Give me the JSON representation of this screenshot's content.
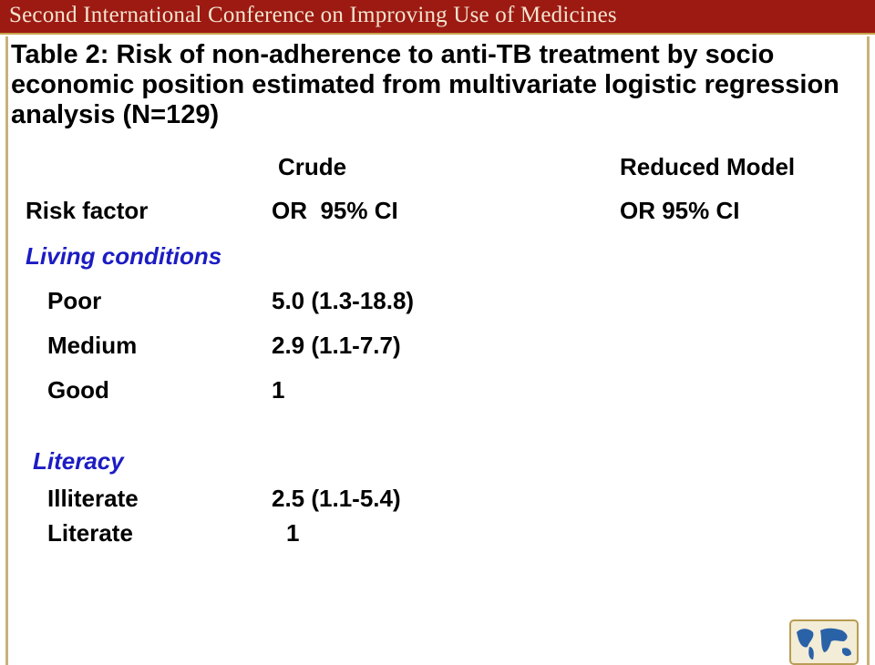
{
  "banner": {
    "title": "Second International Conference on Improving Use of Medicines"
  },
  "heading": "Table 2: Risk of non-adherence to anti-TB treatment by socio economic position estimated from multivariate logistic regression analysis (N=129)",
  "table": {
    "group_headers": {
      "crude": "Crude",
      "reduced": "Reduced Model"
    },
    "column_headers": {
      "risk_factor": "Risk factor",
      "crude_or": "OR  95% CI",
      "reduced_or": "OR 95% CI"
    },
    "sections": [
      {
        "name": "Living conditions",
        "rows": [
          {
            "factor": "Poor",
            "crude": "5.0 (1.3-18.8)"
          },
          {
            "factor": "Medium",
            "crude": "2.9 (1.1-7.7)"
          },
          {
            "factor": "Good",
            "crude": "1"
          }
        ]
      },
      {
        "name": "Literacy",
        "rows": [
          {
            "factor": "Illiterate",
            "crude": "2.5 (1.1-5.4)"
          },
          {
            "factor": "Literate",
            "crude": "1"
          }
        ]
      }
    ]
  },
  "logo": {
    "icon": "world-map-icon"
  },
  "colors": {
    "banner": "#9c1a12",
    "banner_text": "#f3e4d0",
    "section_label": "#1c1cc4",
    "frame_border": "#c8b27a"
  }
}
